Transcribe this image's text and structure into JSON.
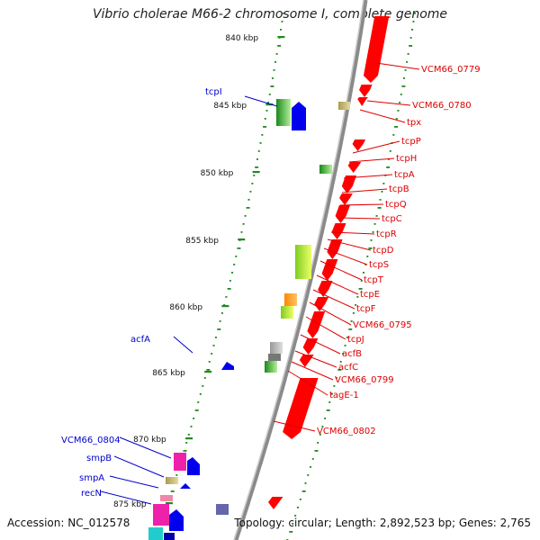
{
  "title": "Vibrio cholerae M66-2 chromosome I, complete genome",
  "footer": {
    "accession": "Accession: NC_012578",
    "topology": "Topology: circular; Length: 2,892,523 bp; Genes: 2,765"
  },
  "colors": {
    "backbone": "#8a8a8a",
    "ticks": "#1f8a1f",
    "reverse_label": "#dd0000",
    "forward_label": "#0000cc",
    "reverse_gene": "#ff0000",
    "forward_gene": "#0000ee"
  },
  "scale_ticks": [
    "840 kbp",
    "845 kbp",
    "850 kbp",
    "855 kbp",
    "860 kbp",
    "865 kbp",
    "870 kbp",
    "875 kbp"
  ],
  "genes": {
    "reverse_strand": [
      "VCM66_0779",
      "VCM66_0780",
      "tpx",
      "tcpP",
      "tcpH",
      "tcpA",
      "tcpB",
      "tcpQ",
      "tcpC",
      "tcpR",
      "tcpD",
      "tcpS",
      "tcpT",
      "tcpE",
      "tcpF",
      "VCM66_0795",
      "tcpJ",
      "acfB",
      "acfC",
      "VCM66_0799",
      "tagE-1",
      "VCM66_0802"
    ],
    "forward_strand": [
      "tcpI",
      "acfA",
      "VCM66_0804",
      "smpB",
      "smpA",
      "recN"
    ]
  }
}
